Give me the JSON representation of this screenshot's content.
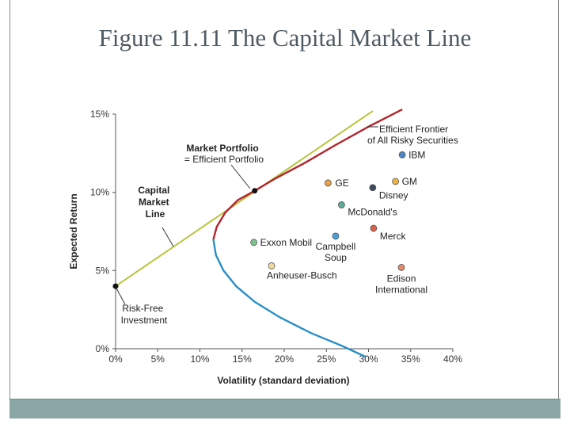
{
  "slide": {
    "title": "Figure 11.11  The Capital Market Line"
  },
  "chart_data": {
    "type": "scatter",
    "title": "",
    "xlabel": "Volatility (standard deviation)",
    "ylabel": "Expected Return",
    "xlim": [
      0,
      40
    ],
    "ylim": [
      0,
      15
    ],
    "x_ticks": [
      "0%",
      "5%",
      "10%",
      "15%",
      "20%",
      "25%",
      "30%",
      "35%",
      "40%"
    ],
    "y_ticks": [
      "0%",
      "5%",
      "10%",
      "15%"
    ],
    "colors": {
      "cml": "#b8c43a",
      "frontier_efficient": "#b3242c",
      "frontier_inefficient": "#2b8fc7",
      "axis": "#555555"
    },
    "capital_market_line": {
      "label": [
        "Capital",
        "Market",
        "Line"
      ],
      "points": [
        [
          0,
          4.0
        ],
        [
          30.5,
          15.2
        ]
      ]
    },
    "efficient_frontier": {
      "label": [
        "Efficient Frontier",
        "of All Risky Securities"
      ],
      "efficient_points": [
        [
          11.6,
          7.0
        ],
        [
          12.0,
          7.8
        ],
        [
          13.0,
          8.7
        ],
        [
          14.5,
          9.5
        ],
        [
          16.5,
          10.1
        ],
        [
          19.0,
          10.9
        ],
        [
          22.5,
          11.9
        ],
        [
          26.0,
          13.0
        ],
        [
          30.0,
          14.2
        ],
        [
          34.0,
          15.3
        ]
      ],
      "inefficient_points": [
        [
          11.6,
          7.0
        ],
        [
          11.9,
          6.0
        ],
        [
          12.8,
          5.0
        ],
        [
          14.3,
          4.0
        ],
        [
          16.5,
          3.0
        ],
        [
          19.5,
          2.0
        ],
        [
          23.2,
          1.0
        ],
        [
          26.8,
          0.2
        ],
        [
          29.6,
          -0.5
        ]
      ]
    },
    "market_portfolio": {
      "label": [
        "Market Portfolio",
        "= Efficient Portfolio"
      ],
      "point": [
        16.5,
        10.1
      ]
    },
    "risk_free": {
      "label": [
        "Risk-Free",
        "Investment"
      ],
      "point": [
        0,
        4.0
      ]
    },
    "securities": [
      {
        "name": "IBM",
        "x": 34.0,
        "y": 12.4,
        "color": "#4a86c5"
      },
      {
        "name": "GE",
        "x": 25.2,
        "y": 10.6,
        "color": "#e8a24a"
      },
      {
        "name": "GM",
        "x": 33.2,
        "y": 10.7,
        "color": "#f0b23c"
      },
      {
        "name": "Disney",
        "x": 30.5,
        "y": 10.3,
        "color": "#3b4a5c"
      },
      {
        "name": "McDonald's",
        "x": 26.8,
        "y": 9.2,
        "color": "#5fa99a"
      },
      {
        "name": "Merck",
        "x": 30.6,
        "y": 7.7,
        "color": "#d9624f"
      },
      {
        "name": "Exxon Mobil",
        "x": 16.4,
        "y": 6.8,
        "color": "#7fc28f"
      },
      {
        "name": "Campbell Soup",
        "x": 26.1,
        "y": 7.2,
        "color": "#4aa0d8"
      },
      {
        "name": "Anheuser-Busch",
        "x": 18.5,
        "y": 5.3,
        "color": "#f2d7a0"
      },
      {
        "name": "Edison International",
        "x": 33.9,
        "y": 5.2,
        "color": "#e48a6a"
      }
    ],
    "security_label_lines": {
      "Campbell Soup": [
        "Campbell",
        "Soup"
      ],
      "Edison International": [
        "Edison",
        "International"
      ]
    }
  }
}
